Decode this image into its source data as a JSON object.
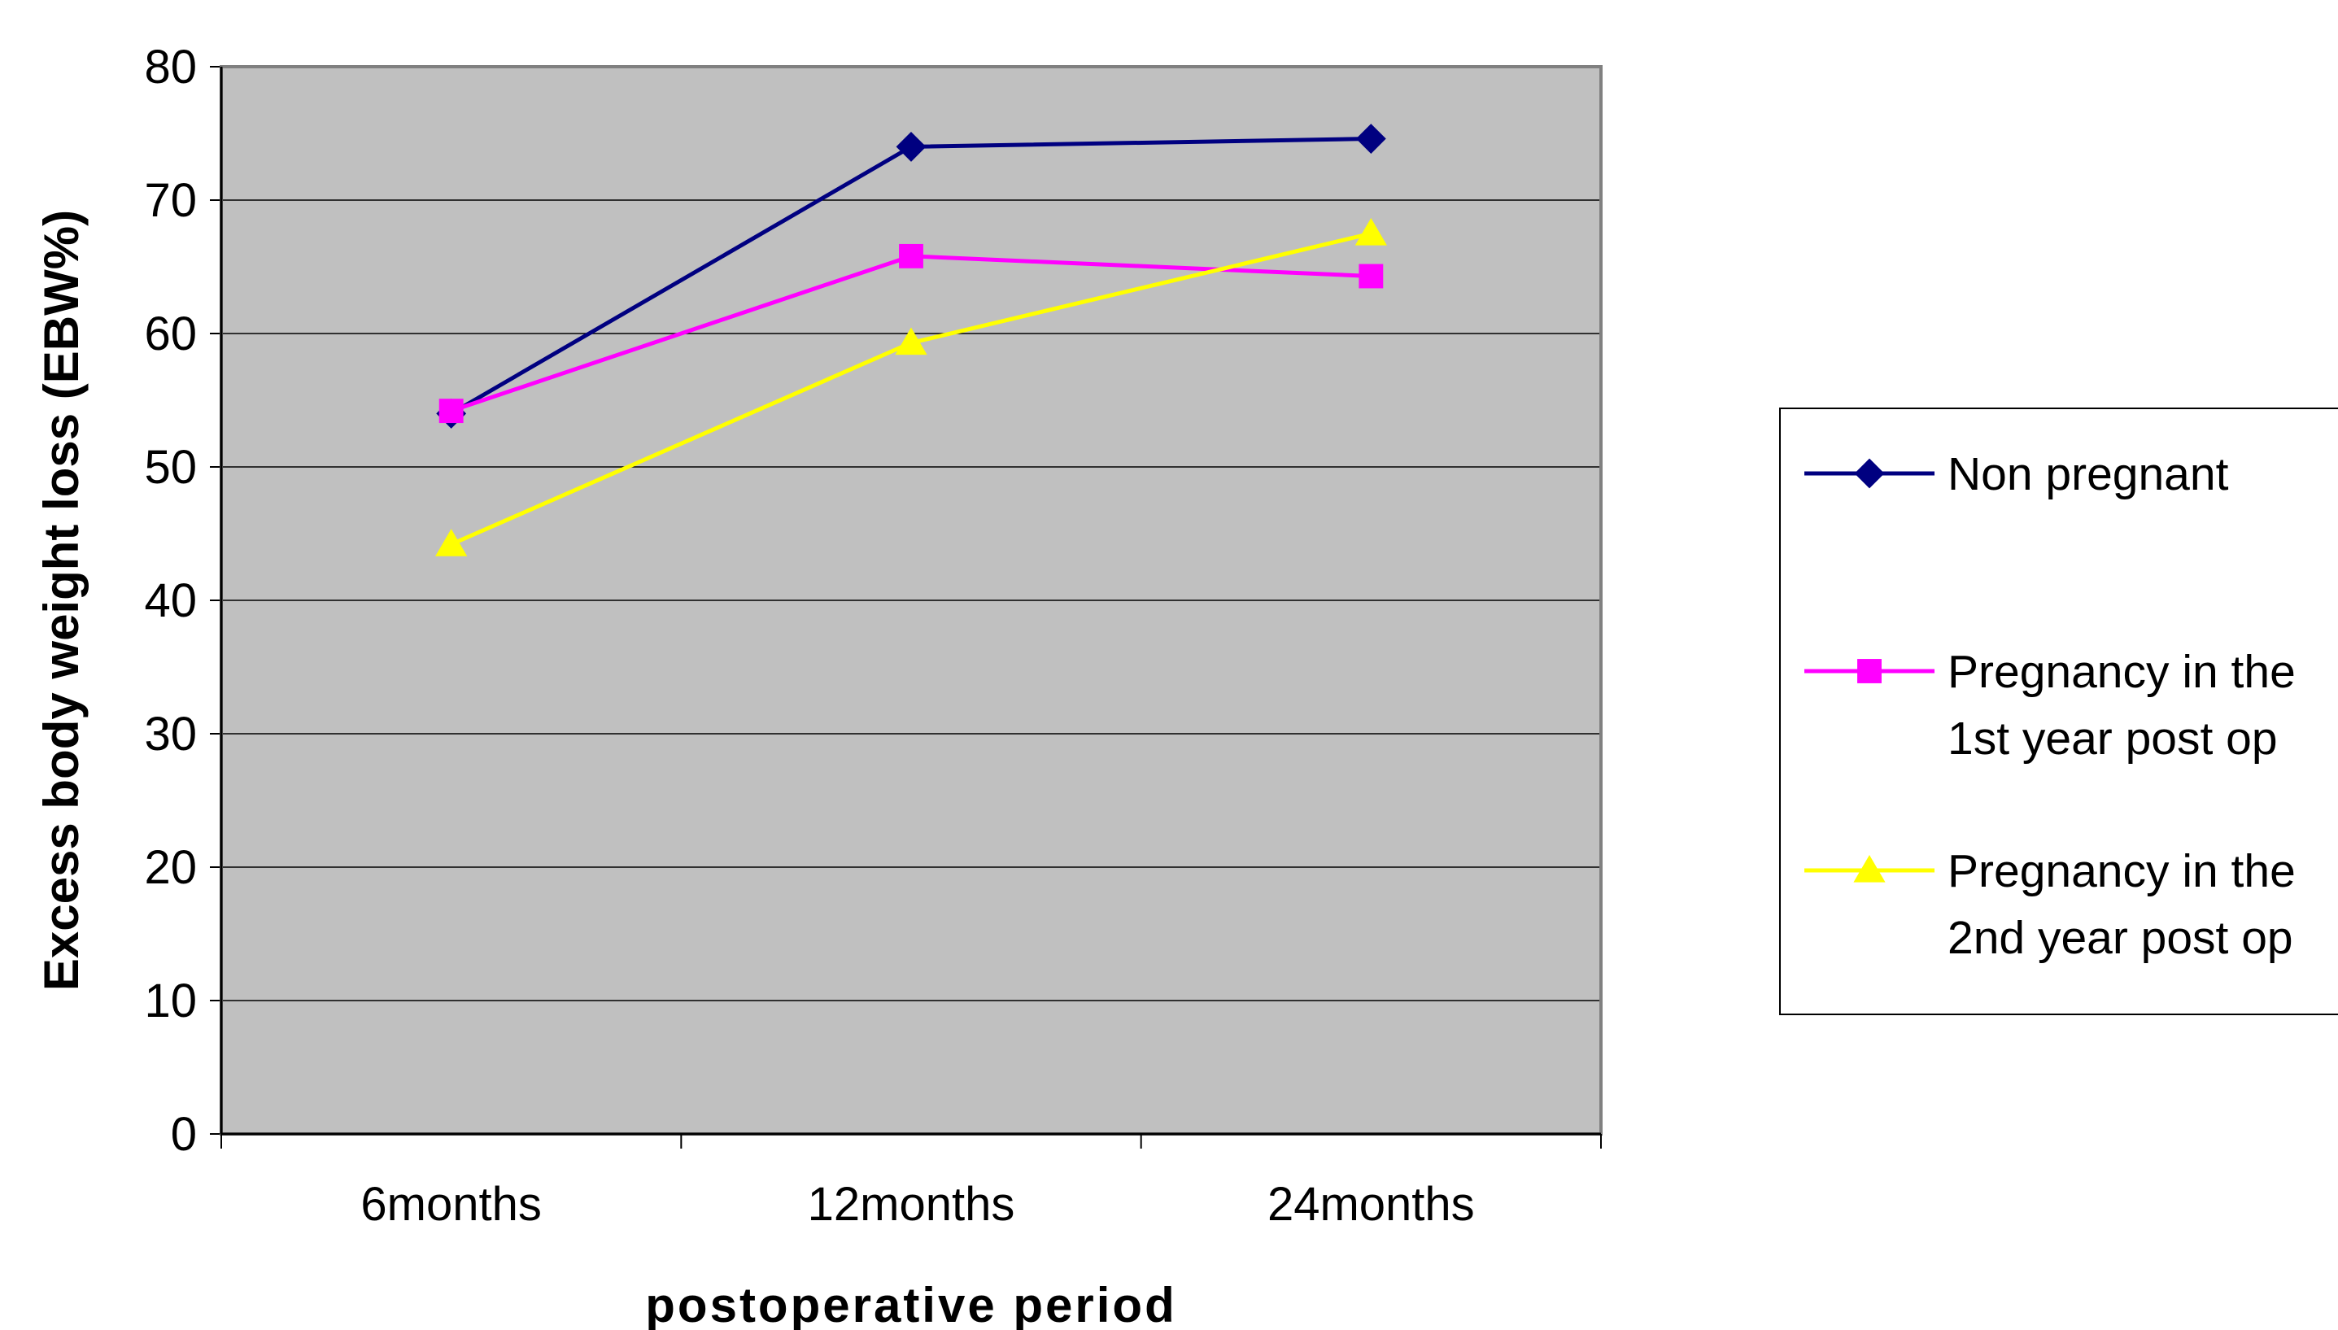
{
  "chart_data": {
    "type": "line",
    "categories": [
      "6months",
      "12months",
      "24months"
    ],
    "series": [
      {
        "name": "Non pregnant",
        "values": [
          54,
          74,
          74.6
        ],
        "color": "#000080",
        "marker": "diamond"
      },
      {
        "name": "Pregnancy in the 1st year post op",
        "name_lines": [
          "Pregnancy in the",
          "1st year post op"
        ],
        "values": [
          54.2,
          65.8,
          64.3
        ],
        "color": "#ff00ff",
        "marker": "square"
      },
      {
        "name": "Pregnancy in the 2nd year post op",
        "name_lines": [
          "Pregnancy in the",
          "2nd year post op"
        ],
        "values": [
          44.2,
          59.3,
          67.5
        ],
        "color": "#ffff00",
        "marker": "triangle"
      }
    ],
    "title": "",
    "xlabel": "postoperative period",
    "ylabel": "Excess body weight loss (EBW%)",
    "ylim": [
      0,
      80
    ],
    "yticks": [
      0,
      10,
      20,
      30,
      40,
      50,
      60,
      70,
      80
    ],
    "plot_background": "#c0c0c0",
    "grid": true,
    "legend_position": "right"
  }
}
